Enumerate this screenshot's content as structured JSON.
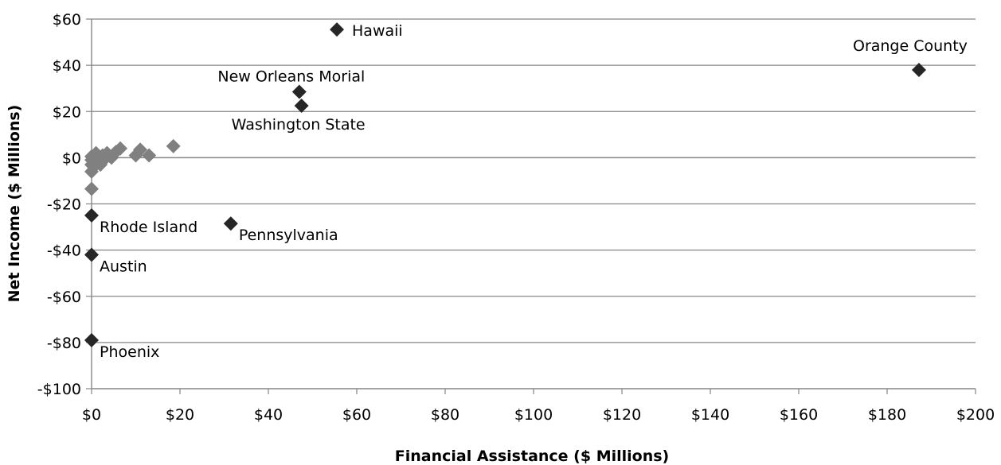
{
  "chart_data": {
    "type": "scatter",
    "title": "",
    "xlabel": "Financial Assistance ($ Millions)",
    "ylabel": "Net Income ($ Millions)",
    "xlim": [
      0,
      200
    ],
    "ylim": [
      -100,
      60
    ],
    "x_ticks": [
      0,
      20,
      40,
      60,
      80,
      100,
      120,
      140,
      160,
      180,
      200
    ],
    "y_ticks": [
      60,
      40,
      20,
      0,
      -20,
      -40,
      -60,
      -80,
      -100
    ],
    "x_tick_labels": [
      "$0",
      "$20",
      "$40",
      "$60",
      "$80",
      "$100",
      "$120",
      "$140",
      "$160",
      "$180",
      "$200"
    ],
    "y_tick_labels": [
      "$60",
      "$40",
      "$20",
      "$0",
      "-$20",
      "-$40",
      "-$60",
      "-$80",
      "-$100"
    ],
    "grid": "horizontal",
    "legend": "none",
    "colors": {
      "highlight": "#262626",
      "other": "#808080",
      "grid": "#868686",
      "axis": "#868686"
    },
    "highlighted": [
      {
        "label": "Hawaii",
        "x": 55.5,
        "y": 55.5,
        "label_pos": "right"
      },
      {
        "label": "Orange County",
        "x": 187.2,
        "y": 38,
        "label_pos": "above"
      },
      {
        "label": "New Orleans Morial",
        "x": 47.0,
        "y": 28.5,
        "label_pos": "above-left"
      },
      {
        "label": "Washington State",
        "x": 47.5,
        "y": 22.5,
        "label_pos": "below-left"
      },
      {
        "label": "Pennsylvania",
        "x": 31.5,
        "y": -28.5,
        "label_pos": "below-right"
      },
      {
        "label": "Rhode Island",
        "x": 0,
        "y": -25,
        "label_pos": "below-right"
      },
      {
        "label": "Austin",
        "x": 0,
        "y": -42,
        "label_pos": "below-right"
      },
      {
        "label": "Phoenix",
        "x": 0,
        "y": -79,
        "label_pos": "below-right"
      }
    ],
    "others": [
      {
        "x": 0,
        "y": -13.5
      },
      {
        "x": 0,
        "y": -6
      },
      {
        "x": 0,
        "y": -3
      },
      {
        "x": 0,
        "y": -1
      },
      {
        "x": 0,
        "y": 0.5
      },
      {
        "x": 0.5,
        "y": -4
      },
      {
        "x": 1,
        "y": 2
      },
      {
        "x": 1,
        "y": -2
      },
      {
        "x": 1.5,
        "y": 0
      },
      {
        "x": 2,
        "y": -3
      },
      {
        "x": 2.5,
        "y": 1
      },
      {
        "x": 3,
        "y": -0.5
      },
      {
        "x": 3.5,
        "y": 2
      },
      {
        "x": 4.5,
        "y": 0
      },
      {
        "x": 5.5,
        "y": 2.5
      },
      {
        "x": 6.5,
        "y": 4
      },
      {
        "x": 10,
        "y": 1
      },
      {
        "x": 11,
        "y": 3.5
      },
      {
        "x": 13,
        "y": 1
      },
      {
        "x": 18.5,
        "y": 5
      }
    ]
  }
}
